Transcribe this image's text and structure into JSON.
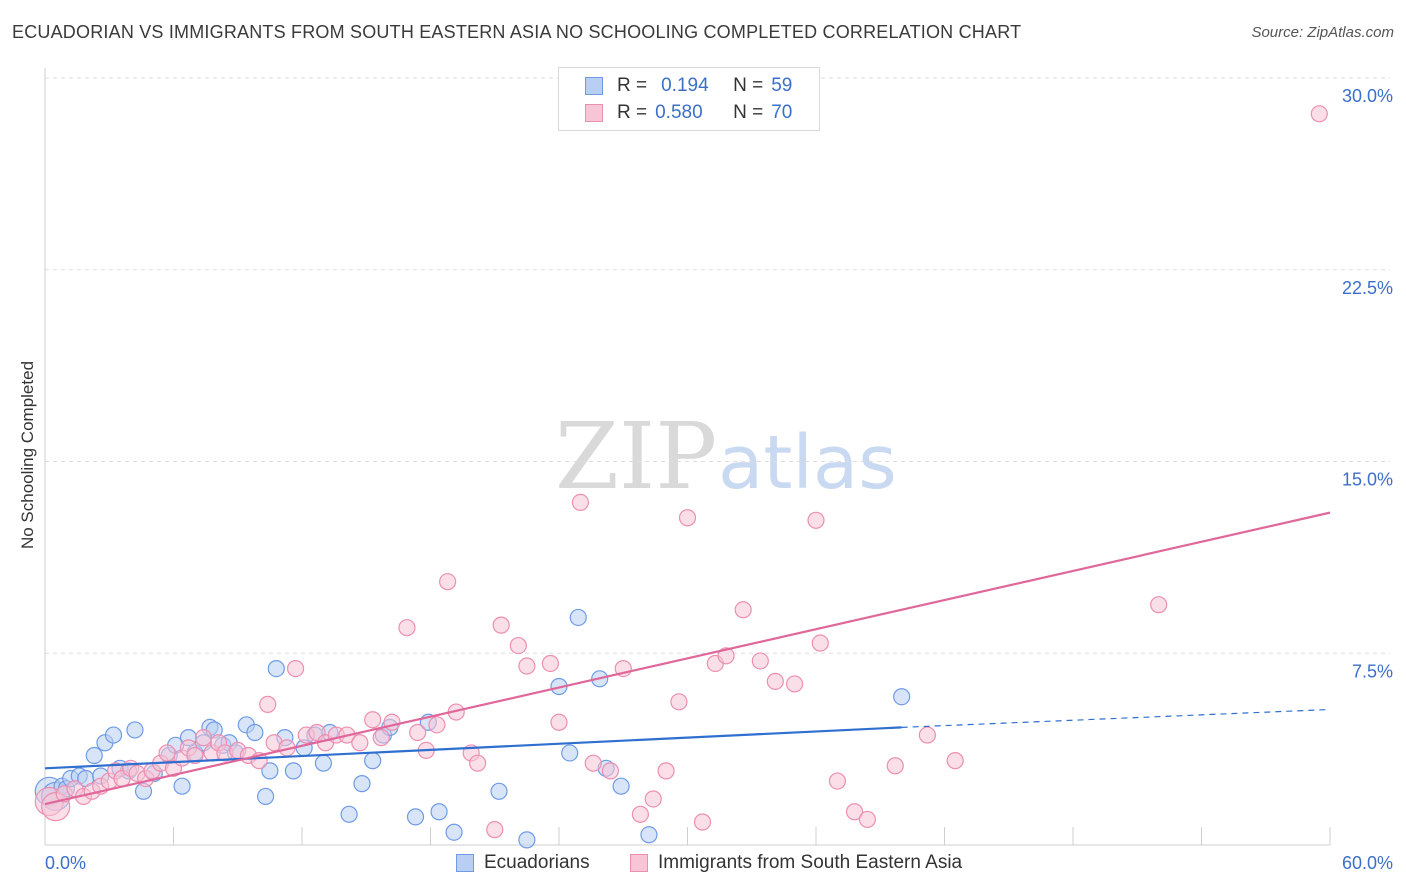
{
  "title": "ECUADORIAN VS IMMIGRANTS FROM SOUTH EASTERN ASIA NO SCHOOLING COMPLETED CORRELATION CHART",
  "source": "Source: ZipAtlas.com",
  "watermark": {
    "zip": "ZIP",
    "atlas": "atlas"
  },
  "legend_top": [
    {
      "r_label": "R =",
      "r_value": "0.194",
      "n_label": "N =",
      "n_value": "59"
    },
    {
      "r_label": "R =",
      "r_value": "0.580",
      "n_label": "N =",
      "n_value": "70"
    }
  ],
  "legend_bottom": [
    "Ecuadorians",
    "Immigrants from South Eastern Asia"
  ],
  "colors": {
    "blue": "#6f9be6",
    "blue_fill": "#b8cff3",
    "blue_line": "#2f6fd0",
    "pink": "#ec8fb0",
    "pink_fill": "#f8c5d6",
    "pink_line": "#e0679a",
    "tick_label": "#3b6fc9"
  },
  "chart_data": {
    "type": "scatter",
    "xlabel": "",
    "ylabel": "No Schooling Completed",
    "xlim": [
      0,
      60
    ],
    "ylim": [
      0,
      30
    ],
    "x_tick_labels": [
      "0.0%",
      "60.0%"
    ],
    "y_ticks": [
      7.5,
      15.0,
      22.5,
      30.0
    ],
    "y_tick_labels": [
      "7.5%",
      "15.0%",
      "22.5%",
      "30.0%"
    ],
    "grid": true,
    "series": [
      {
        "name": "Ecuadorians",
        "color": "#6f9be6",
        "trend": {
          "x0": 0,
          "y0": 3.0,
          "x1": 40,
          "y1": 4.6,
          "dash_to_x": 60,
          "dash_to_y": 5.3
        },
        "points": [
          [
            0.2,
            2.1
          ],
          [
            0.5,
            1.9
          ],
          [
            0.8,
            2.3
          ],
          [
            1.0,
            2.2
          ],
          [
            1.2,
            2.6
          ],
          [
            1.6,
            2.7
          ],
          [
            1.9,
            2.6
          ],
          [
            2.3,
            3.5
          ],
          [
            2.6,
            2.7
          ],
          [
            2.8,
            4.0
          ],
          [
            3.2,
            4.3
          ],
          [
            3.5,
            3.0
          ],
          [
            3.9,
            2.9
          ],
          [
            4.2,
            4.5
          ],
          [
            4.6,
            2.1
          ],
          [
            5.1,
            2.8
          ],
          [
            5.8,
            3.5
          ],
          [
            6.1,
            3.9
          ],
          [
            6.4,
            2.3
          ],
          [
            6.7,
            4.2
          ],
          [
            7.0,
            3.6
          ],
          [
            7.4,
            4.0
          ],
          [
            7.7,
            4.6
          ],
          [
            7.9,
            4.5
          ],
          [
            8.3,
            3.9
          ],
          [
            8.6,
            4.0
          ],
          [
            8.9,
            3.6
          ],
          [
            9.4,
            4.7
          ],
          [
            9.8,
            4.4
          ],
          [
            10.3,
            1.9
          ],
          [
            10.5,
            2.9
          ],
          [
            10.8,
            6.9
          ],
          [
            11.2,
            4.2
          ],
          [
            11.6,
            2.9
          ],
          [
            12.1,
            3.8
          ],
          [
            12.6,
            4.3
          ],
          [
            13.0,
            3.2
          ],
          [
            13.3,
            4.4
          ],
          [
            14.2,
            1.2
          ],
          [
            14.8,
            2.4
          ],
          [
            15.3,
            3.3
          ],
          [
            15.8,
            4.3
          ],
          [
            16.1,
            4.6
          ],
          [
            17.3,
            1.1
          ],
          [
            17.9,
            4.8
          ],
          [
            18.4,
            1.3
          ],
          [
            19.1,
            0.5
          ],
          [
            21.2,
            2.1
          ],
          [
            22.5,
            0.2
          ],
          [
            24.0,
            6.2
          ],
          [
            24.5,
            3.6
          ],
          [
            24.9,
            8.9
          ],
          [
            25.9,
            6.5
          ],
          [
            26.2,
            3.0
          ],
          [
            26.9,
            2.3
          ],
          [
            28.2,
            0.4
          ],
          [
            40.0,
            5.8
          ]
        ]
      },
      {
        "name": "Immigrants from South Eastern Asia",
        "color": "#ec8fb0",
        "trend": {
          "x0": 0,
          "y0": 1.6,
          "x1": 60,
          "y1": 13.0
        },
        "points": [
          [
            0.2,
            1.7
          ],
          [
            0.5,
            1.5
          ],
          [
            0.9,
            2.0
          ],
          [
            1.4,
            2.2
          ],
          [
            1.8,
            1.9
          ],
          [
            2.2,
            2.1
          ],
          [
            2.6,
            2.3
          ],
          [
            3.0,
            2.5
          ],
          [
            3.3,
            2.9
          ],
          [
            3.6,
            2.6
          ],
          [
            4.0,
            3.0
          ],
          [
            4.3,
            2.8
          ],
          [
            4.7,
            2.6
          ],
          [
            5.0,
            2.9
          ],
          [
            5.4,
            3.2
          ],
          [
            5.7,
            3.6
          ],
          [
            6.0,
            3.0
          ],
          [
            6.4,
            3.4
          ],
          [
            6.7,
            3.8
          ],
          [
            7.0,
            3.5
          ],
          [
            7.4,
            4.2
          ],
          [
            7.8,
            3.6
          ],
          [
            8.1,
            4.0
          ],
          [
            8.4,
            3.6
          ],
          [
            9.0,
            3.7
          ],
          [
            9.5,
            3.5
          ],
          [
            10.0,
            3.3
          ],
          [
            10.4,
            5.5
          ],
          [
            10.7,
            4.0
          ],
          [
            11.3,
            3.8
          ],
          [
            11.7,
            6.9
          ],
          [
            12.2,
            4.3
          ],
          [
            12.7,
            4.4
          ],
          [
            13.1,
            4.0
          ],
          [
            13.6,
            4.3
          ],
          [
            14.1,
            4.3
          ],
          [
            14.7,
            4.0
          ],
          [
            15.3,
            4.9
          ],
          [
            15.7,
            4.2
          ],
          [
            16.2,
            4.8
          ],
          [
            16.9,
            8.5
          ],
          [
            17.4,
            4.4
          ],
          [
            17.8,
            3.7
          ],
          [
            18.3,
            4.7
          ],
          [
            18.8,
            10.3
          ],
          [
            19.2,
            5.2
          ],
          [
            19.9,
            3.6
          ],
          [
            20.2,
            3.2
          ],
          [
            21.0,
            0.6
          ],
          [
            21.3,
            8.6
          ],
          [
            22.1,
            7.8
          ],
          [
            22.5,
            7.0
          ],
          [
            23.6,
            7.1
          ],
          [
            24.0,
            4.8
          ],
          [
            25.0,
            13.4
          ],
          [
            25.6,
            3.2
          ],
          [
            26.4,
            2.9
          ],
          [
            27.0,
            6.9
          ],
          [
            27.8,
            1.2
          ],
          [
            28.4,
            1.8
          ],
          [
            29.0,
            2.9
          ],
          [
            29.6,
            5.6
          ],
          [
            30.0,
            12.8
          ],
          [
            30.7,
            0.9
          ],
          [
            31.3,
            7.1
          ],
          [
            31.8,
            7.4
          ],
          [
            32.6,
            9.2
          ],
          [
            33.4,
            7.2
          ],
          [
            34.1,
            6.4
          ],
          [
            35.0,
            6.3
          ],
          [
            36.0,
            12.7
          ],
          [
            36.2,
            7.9
          ],
          [
            37.0,
            2.5
          ],
          [
            37.8,
            1.3
          ],
          [
            38.4,
            1.0
          ],
          [
            39.7,
            3.1
          ],
          [
            41.2,
            4.3
          ],
          [
            42.5,
            3.3
          ],
          [
            52.0,
            9.4
          ],
          [
            59.5,
            28.6
          ]
        ]
      }
    ]
  }
}
